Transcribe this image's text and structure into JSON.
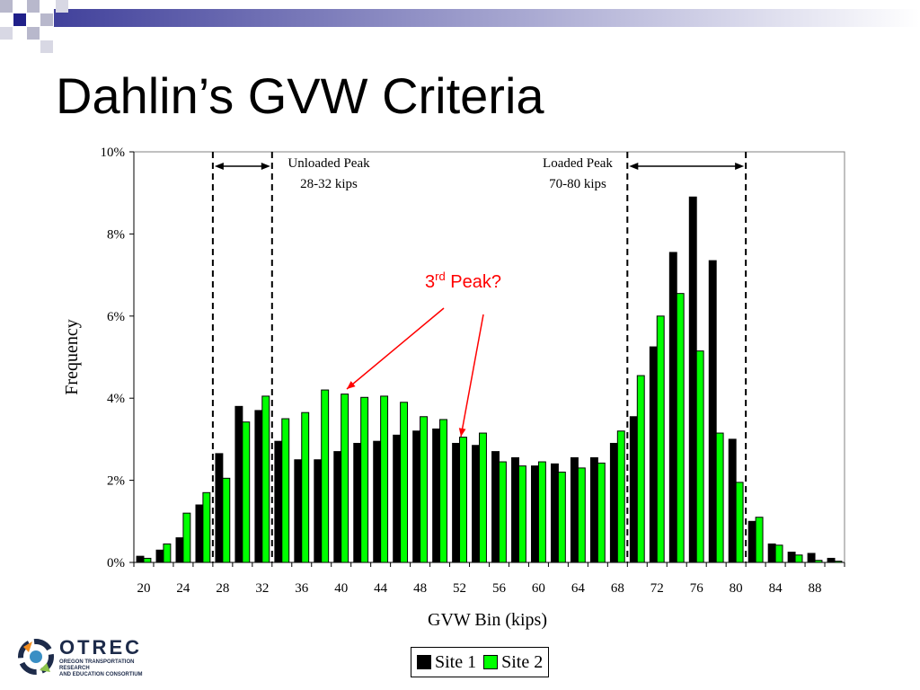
{
  "slide": {
    "title": "Dahlin’s GVW Criteria"
  },
  "logo": {
    "name": "OTREC",
    "subtitle_line1": "OREGON TRANSPORTATION RESEARCH",
    "subtitle_line2": "AND EDUCATION CONSORTIUM"
  },
  "colors": {
    "site1": "#000000",
    "site2": "#00ff00",
    "annotation": "#ff0000",
    "deco_navy": "#20208a",
    "deco_gray": "#b8b8cc"
  },
  "chart_data": {
    "type": "bar",
    "xlabel": "GVW Bin (kips)",
    "ylabel": "Frequency",
    "ylim": [
      0,
      10
    ],
    "yticks": [
      "0%",
      "2%",
      "4%",
      "6%",
      "8%",
      "10%"
    ],
    "xtick_labels": [
      "20",
      "24",
      "28",
      "32",
      "36",
      "40",
      "44",
      "48",
      "52",
      "56",
      "60",
      "64",
      "68",
      "72",
      "76",
      "80",
      "84",
      "88"
    ],
    "categories": [
      20,
      22,
      24,
      26,
      28,
      30,
      32,
      34,
      36,
      38,
      40,
      42,
      44,
      46,
      48,
      50,
      52,
      54,
      56,
      58,
      60,
      62,
      64,
      66,
      68,
      70,
      72,
      74,
      76,
      78,
      80,
      82,
      84,
      86,
      88,
      90
    ],
    "series": [
      {
        "name": "Site 1",
        "values": [
          0.15,
          0.3,
          0.6,
          1.4,
          2.65,
          3.8,
          3.7,
          2.95,
          2.5,
          2.5,
          2.7,
          2.9,
          2.95,
          3.1,
          3.2,
          3.25,
          2.9,
          2.85,
          2.7,
          2.55,
          2.35,
          2.4,
          2.55,
          2.55,
          2.9,
          3.55,
          5.25,
          7.55,
          8.9,
          7.35,
          3.0,
          1.0,
          0.45,
          0.25,
          0.22,
          0.1
        ]
      },
      {
        "name": "Site 2",
        "values": [
          0.1,
          0.45,
          1.2,
          1.7,
          2.05,
          3.42,
          4.05,
          3.5,
          3.65,
          4.2,
          4.1,
          4.02,
          4.05,
          3.9,
          3.55,
          3.48,
          3.05,
          3.15,
          2.45,
          2.35,
          2.45,
          2.2,
          2.3,
          2.42,
          3.2,
          4.55,
          6.0,
          6.55,
          5.15,
          3.15,
          1.95,
          1.1,
          0.42,
          0.18,
          0.05,
          0.03
        ]
      }
    ],
    "annotations": {
      "unloaded_line1": "Unloaded Peak",
      "unloaded_line2": "28-32 kips",
      "loaded_line1": "Loaded Peak",
      "loaded_line2": "70-80 kips",
      "third_peak_prefix": "3",
      "third_peak_sup": "rd",
      "third_peak_suffix": " Peak?"
    }
  }
}
